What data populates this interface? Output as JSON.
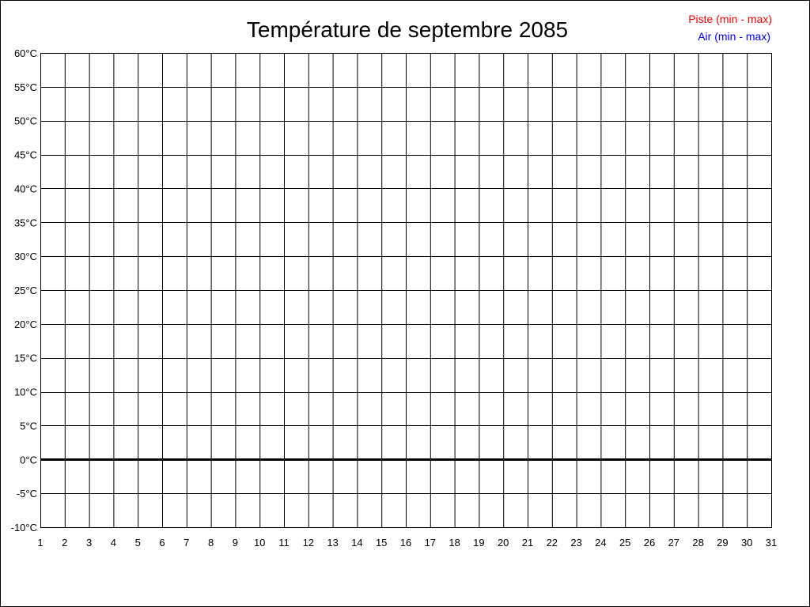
{
  "chart_data": {
    "type": "line",
    "title": "Température de septembre 2085",
    "xlabel": "",
    "ylabel": "",
    "x_ticks": [
      "1",
      "2",
      "3",
      "4",
      "5",
      "6",
      "7",
      "8",
      "9",
      "10",
      "11",
      "12",
      "13",
      "14",
      "15",
      "16",
      "17",
      "18",
      "19",
      "20",
      "21",
      "22",
      "23",
      "24",
      "25",
      "26",
      "27",
      "28",
      "29",
      "30",
      "31"
    ],
    "y_ticks": [
      "60°C",
      "55°C",
      "50°C",
      "45°C",
      "40°C",
      "35°C",
      "30°C",
      "25°C",
      "20°C",
      "15°C",
      "10°C",
      "5°C",
      "0°C",
      "-5°C",
      "-10°C"
    ],
    "xlim": [
      1,
      31
    ],
    "ylim": [
      -10,
      60
    ],
    "y_step": 5,
    "grid": true,
    "legend_position": "top-right",
    "series": [
      {
        "name": "Piste (min - max)",
        "color": "#ff0000",
        "values": []
      },
      {
        "name": "Air (min - max)",
        "color": "#0000ff",
        "values": []
      }
    ]
  }
}
